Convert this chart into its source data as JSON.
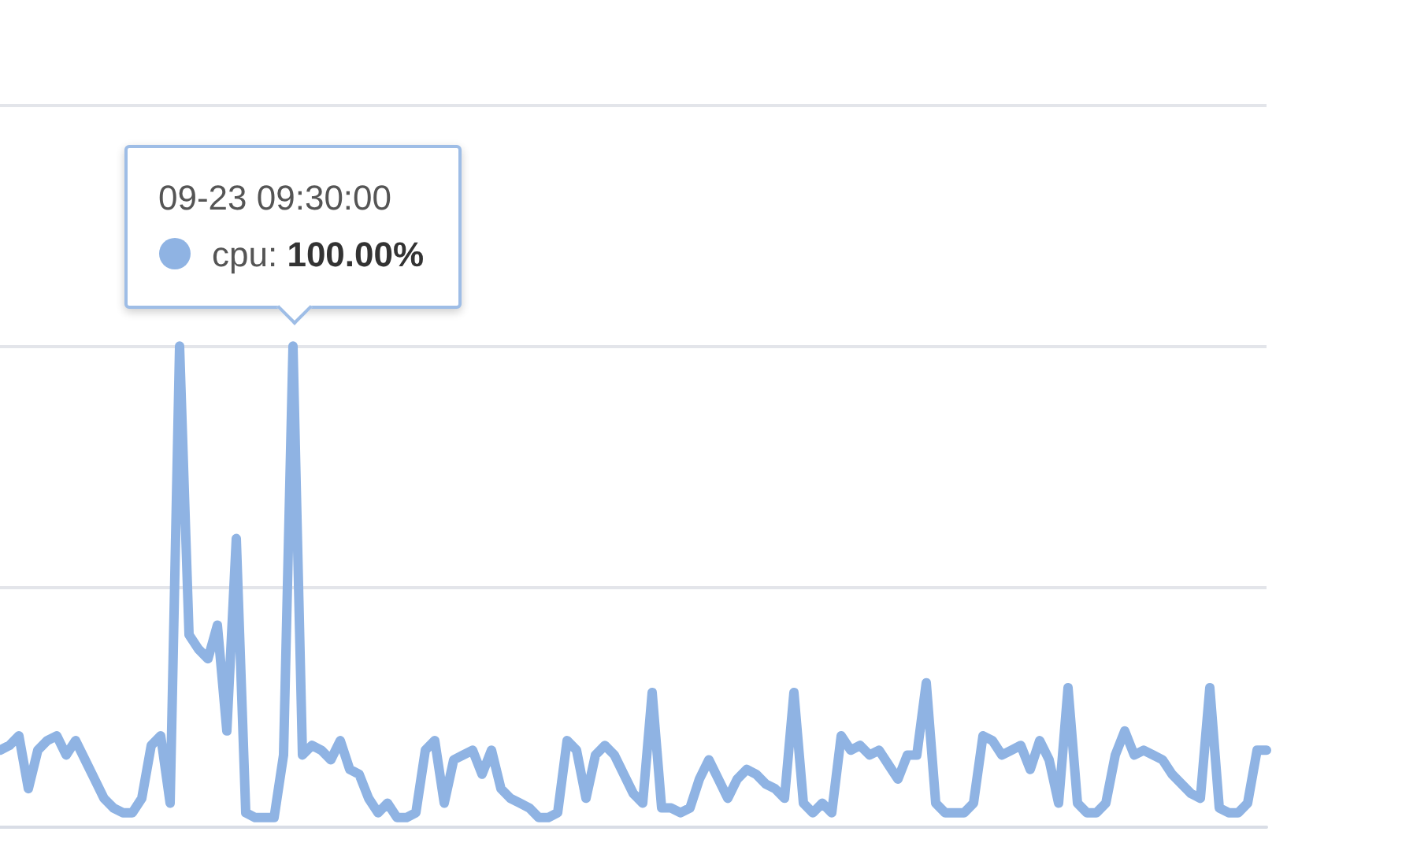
{
  "chart_data": {
    "type": "line",
    "categories": [
      null,
      null,
      null,
      null,
      null,
      null,
      null,
      null,
      null,
      null,
      null,
      null,
      null,
      null,
      null,
      null,
      null,
      null,
      null,
      null,
      null,
      null,
      null,
      null,
      null,
      null,
      null,
      null,
      null,
      null,
      null,
      null,
      null,
      null,
      null,
      null,
      null,
      null,
      null,
      null,
      null,
      null,
      null,
      null,
      null,
      null,
      null,
      null,
      null,
      null,
      null,
      null,
      null,
      null,
      null,
      null,
      null,
      null,
      null,
      null,
      null,
      null,
      null,
      null,
      null,
      null,
      null,
      null,
      null,
      null,
      null,
      null,
      null,
      null,
      null,
      null,
      null,
      null,
      null,
      null,
      null,
      null,
      null,
      null,
      null,
      null,
      null,
      null,
      null,
      null,
      null,
      null,
      null,
      null,
      null,
      null,
      null,
      null,
      null,
      null,
      null,
      null,
      null,
      null,
      null,
      null,
      null,
      null,
      null,
      null,
      null,
      null,
      null,
      null,
      null,
      null,
      null,
      null,
      null,
      null,
      null,
      null,
      null,
      null,
      null,
      null,
      null,
      null,
      null,
      null,
      null,
      null,
      null,
      null,
      null
    ],
    "series": [
      {
        "color": "#8fb3e3",
        "values": [
          16,
          17,
          19,
          8,
          16,
          18,
          19,
          15,
          18,
          14,
          10,
          6,
          4,
          3,
          3,
          6,
          17,
          19,
          5,
          100,
          40,
          37,
          35,
          42,
          20,
          60,
          3,
          2,
          2,
          2,
          15,
          100,
          15,
          17,
          16,
          14,
          18,
          12,
          11,
          6,
          3,
          5,
          2,
          2,
          3,
          16,
          18,
          5,
          14,
          15,
          16,
          11,
          16,
          8,
          6,
          5,
          4,
          2,
          2,
          3,
          18,
          16,
          6,
          15,
          17,
          15,
          11,
          7,
          5,
          28,
          4,
          4,
          3,
          4,
          10,
          14,
          10,
          6,
          10,
          12,
          11,
          9,
          8,
          6,
          28,
          5,
          3,
          5,
          3,
          19,
          16,
          17,
          15,
          16,
          13,
          10,
          15,
          15,
          30,
          5,
          3,
          3,
          3,
          5,
          19,
          18,
          15,
          16,
          17,
          12,
          18,
          14,
          5,
          29,
          5,
          3,
          3,
          5,
          15,
          20,
          15,
          16,
          15,
          14,
          11,
          9,
          7,
          6,
          29,
          4,
          3,
          3,
          5,
          16,
          16
        ],
        "value_labels": [
          null,
          null,
          null,
          null,
          null,
          null,
          null,
          null,
          null,
          null,
          null,
          null,
          null,
          null,
          null,
          null,
          null,
          null,
          null,
          null,
          null,
          null,
          null,
          null,
          null,
          null,
          null,
          null,
          null,
          null,
          null,
          "cpu: 100.00%",
          null,
          null,
          null,
          null,
          null,
          null,
          null,
          null,
          null,
          null,
          null,
          null,
          null,
          null,
          null,
          null,
          null,
          null,
          null,
          null,
          null,
          null,
          null,
          null,
          null,
          null,
          null,
          null,
          null,
          null,
          null,
          null,
          null,
          null,
          null,
          null,
          null,
          null,
          null,
          null,
          null,
          null,
          null,
          null,
          null,
          null,
          null,
          null,
          null,
          null,
          null,
          null,
          null,
          null,
          null,
          null,
          null,
          null,
          null,
          null,
          null,
          null,
          null,
          null,
          null,
          null,
          null,
          null,
          null,
          null,
          null,
          null,
          null,
          null,
          null,
          null,
          null,
          null,
          null,
          null,
          null,
          null,
          null,
          null,
          null,
          null,
          null,
          null,
          null,
          null,
          null,
          null,
          null,
          null,
          null,
          null,
          null,
          null,
          null,
          null,
          null,
          null,
          null
        ]
      }
    ],
    "annotations": [
      "09-23 09:30:00"
    ],
    "ylim": [
      0,
      150
    ],
    "yticks": [
      {
        "value": 0,
        "label": null
      },
      {
        "value": 50,
        "label": null
      },
      {
        "value": 100,
        "label": null
      },
      {
        "value": 150,
        "label": null
      }
    ],
    "grid": "y",
    "marker": "none",
    "line_style": "solid"
  }
}
